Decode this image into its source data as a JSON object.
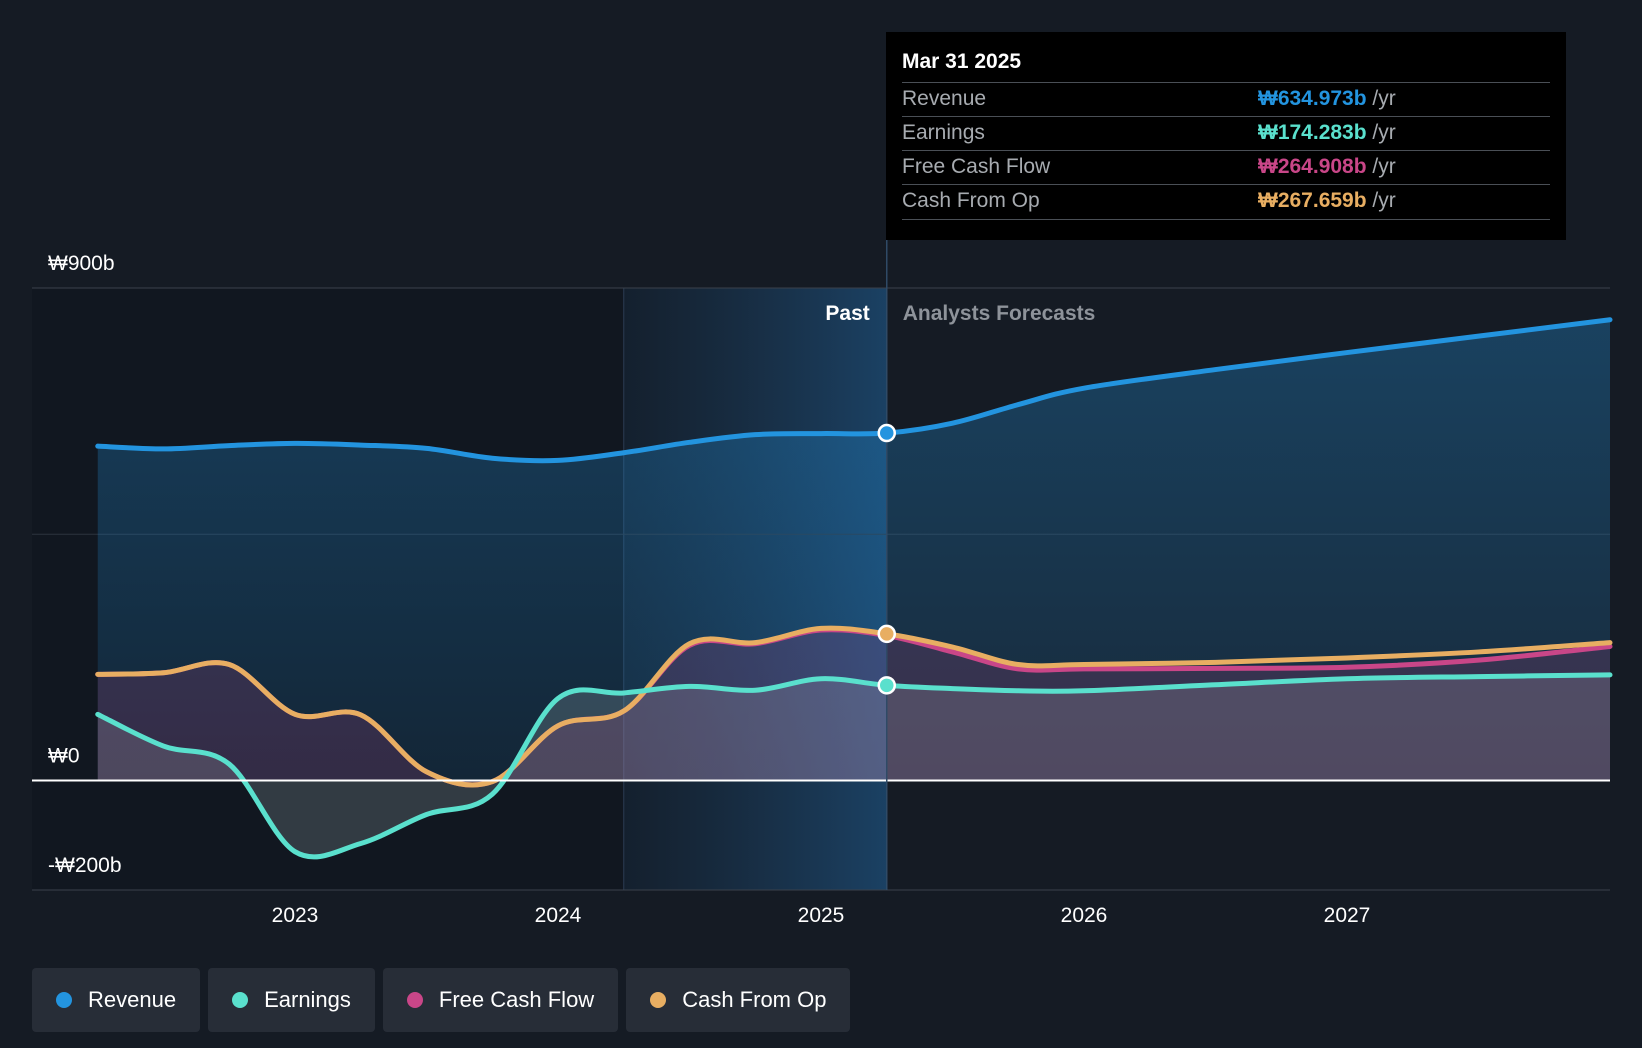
{
  "chart_data": {
    "type": "line",
    "y_axis": {
      "ylim": [
        -200,
        900
      ],
      "unit": "₩ billions",
      "tick_labels": [
        "₩900b",
        "₩0",
        "-₩200b"
      ],
      "tick_values": [
        900,
        0,
        -200
      ]
    },
    "x_axis": {
      "xlim": [
        2022.0,
        2028.0
      ],
      "tick_labels": [
        "2023",
        "2024",
        "2025",
        "2026",
        "2027"
      ],
      "tick_values": [
        2023,
        2024,
        2025,
        2026,
        2027
      ]
    },
    "past_label": "Past",
    "forecast_label": "Analysts Forecasts",
    "divider_x": 2025.25,
    "highlight_x": [
      2024.25,
      2025.25
    ],
    "series": [
      {
        "name": "Revenue",
        "color": "#2394df",
        "fill": true,
        "points": [
          [
            2022.25,
            611
          ],
          [
            2022.5,
            606
          ],
          [
            2022.75,
            612
          ],
          [
            2023.0,
            616
          ],
          [
            2023.25,
            613
          ],
          [
            2023.5,
            607
          ],
          [
            2023.75,
            589
          ],
          [
            2024.0,
            585
          ],
          [
            2024.25,
            599
          ],
          [
            2024.5,
            618
          ],
          [
            2024.75,
            632
          ],
          [
            2025.0,
            634
          ],
          [
            2025.25,
            635
          ],
          [
            2025.5,
            653
          ],
          [
            2025.75,
            687
          ],
          [
            2026.0,
            717
          ],
          [
            2026.5,
            751
          ],
          [
            2027.0,
            782
          ],
          [
            2027.5,
            812
          ],
          [
            2028.0,
            842
          ]
        ]
      },
      {
        "name": "Earnings",
        "color": "#5ae0cd",
        "fill": true,
        "points": [
          [
            2022.25,
            121
          ],
          [
            2022.5,
            63
          ],
          [
            2022.75,
            30
          ],
          [
            2023.0,
            -130
          ],
          [
            2023.25,
            -115
          ],
          [
            2023.5,
            -62
          ],
          [
            2023.75,
            -25
          ],
          [
            2024.0,
            150
          ],
          [
            2024.25,
            160
          ],
          [
            2024.5,
            172
          ],
          [
            2024.75,
            165
          ],
          [
            2025.0,
            186
          ],
          [
            2025.25,
            174
          ],
          [
            2025.5,
            168
          ],
          [
            2025.75,
            164
          ],
          [
            2026.0,
            164
          ],
          [
            2026.5,
            175
          ],
          [
            2027.0,
            186
          ],
          [
            2027.5,
            190
          ],
          [
            2028.0,
            193
          ]
        ]
      },
      {
        "name": "Free Cash Flow",
        "color": "#c94688",
        "fill": true,
        "points": [
          [
            2022.25,
            194
          ],
          [
            2022.5,
            197
          ],
          [
            2022.75,
            212
          ],
          [
            2023.0,
            121
          ],
          [
            2023.25,
            120
          ],
          [
            2023.5,
            16
          ],
          [
            2023.75,
            -2
          ],
          [
            2024.0,
            100
          ],
          [
            2024.25,
            127
          ],
          [
            2024.5,
            247
          ],
          [
            2024.75,
            250
          ],
          [
            2025.0,
            275
          ],
          [
            2025.25,
            265
          ],
          [
            2025.5,
            235
          ],
          [
            2025.75,
            204
          ],
          [
            2026.0,
            204
          ],
          [
            2026.5,
            205
          ],
          [
            2027.0,
            207
          ],
          [
            2027.5,
            220
          ],
          [
            2028.0,
            245
          ]
        ]
      },
      {
        "name": "Cash From Op",
        "color": "#e8ae62",
        "fill": false,
        "points": [
          [
            2022.25,
            194
          ],
          [
            2022.5,
            197
          ],
          [
            2022.75,
            212
          ],
          [
            2023.0,
            121
          ],
          [
            2023.25,
            120
          ],
          [
            2023.5,
            16
          ],
          [
            2023.75,
            -2
          ],
          [
            2024.0,
            100
          ],
          [
            2024.25,
            127
          ],
          [
            2024.5,
            250
          ],
          [
            2024.75,
            252
          ],
          [
            2025.0,
            278
          ],
          [
            2025.25,
            268
          ],
          [
            2025.5,
            244
          ],
          [
            2025.75,
            212
          ],
          [
            2026.0,
            212
          ],
          [
            2026.5,
            216
          ],
          [
            2027.0,
            224
          ],
          [
            2027.5,
            235
          ],
          [
            2028.0,
            252
          ]
        ]
      }
    ]
  },
  "tooltip": {
    "date": "Mar 31 2025",
    "rows": [
      {
        "label": "Revenue",
        "value": "₩634.973b",
        "unit": "/yr",
        "color": "#2394df"
      },
      {
        "label": "Earnings",
        "value": "₩174.283b",
        "unit": "/yr",
        "color": "#5ae0cd"
      },
      {
        "label": "Free Cash Flow",
        "value": "₩264.908b",
        "unit": "/yr",
        "color": "#c94688"
      },
      {
        "label": "Cash From Op",
        "value": "₩267.659b",
        "unit": "/yr",
        "color": "#e8ae62"
      }
    ]
  },
  "legend": [
    {
      "label": "Revenue",
      "color": "#2394df"
    },
    {
      "label": "Earnings",
      "color": "#5ae0cd"
    },
    {
      "label": "Free Cash Flow",
      "color": "#c94688"
    },
    {
      "label": "Cash From Op",
      "color": "#e8ae62"
    }
  ]
}
